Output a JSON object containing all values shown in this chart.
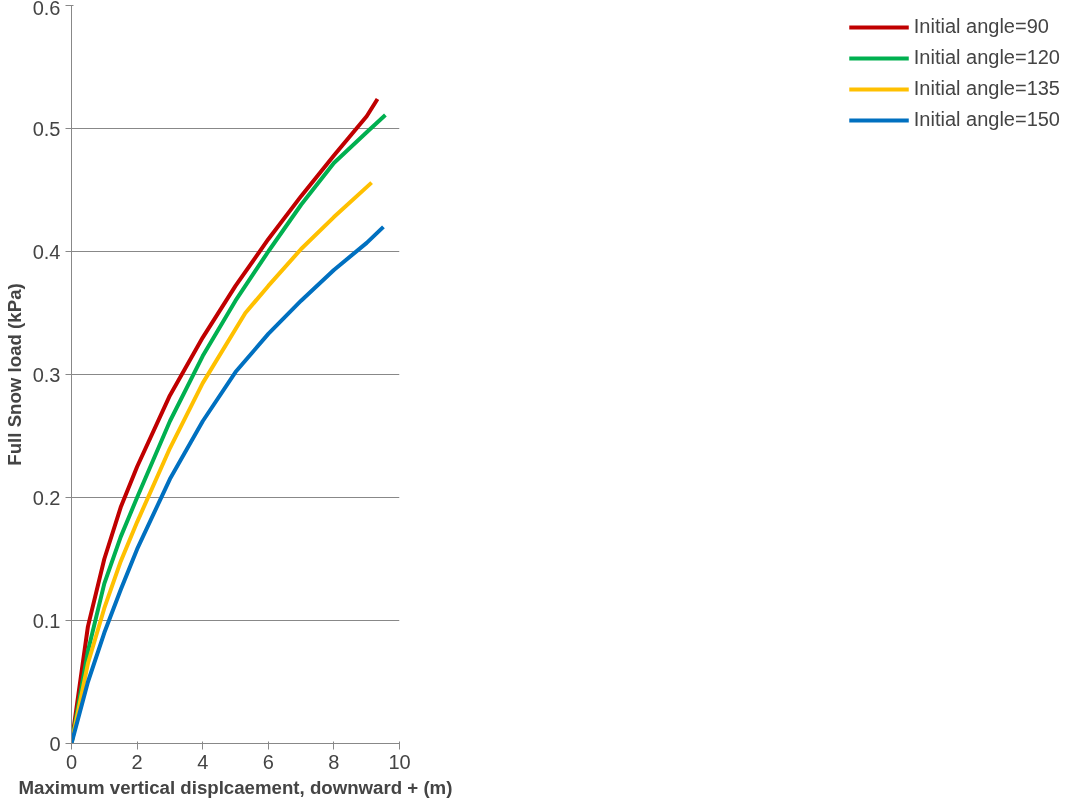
{
  "chart_data": {
    "type": "line",
    "xlabel": "Maximum vertical displcaement, downward + (m)",
    "ylabel": "Full Snow load (kPa)",
    "xlim": [
      0,
      10
    ],
    "ylim": [
      0,
      0.6
    ],
    "xticks": [
      0,
      2,
      4,
      6,
      8,
      10
    ],
    "yticks": [
      0,
      0.1,
      0.2,
      0.3,
      0.4,
      0.5,
      0.6
    ],
    "grid": "y",
    "legend": "right",
    "line_style": "solid",
    "series": [
      {
        "name": "Initial angle=90",
        "color": "#c00000",
        "x": [
          0,
          0.5,
          1,
          1.5,
          2,
          3,
          4,
          5,
          6,
          7,
          8,
          9,
          9.33
        ],
        "values": [
          0,
          0.095,
          0.15,
          0.192,
          0.225,
          0.283,
          0.33,
          0.372,
          0.41,
          0.445,
          0.478,
          0.51,
          0.524
        ]
      },
      {
        "name": "Initial angle=120",
        "color": "#00b050",
        "x": [
          0,
          0.5,
          1,
          1.5,
          2,
          3,
          4,
          5,
          6,
          7,
          8,
          9,
          9.57
        ],
        "values": [
          0,
          0.075,
          0.13,
          0.168,
          0.2,
          0.262,
          0.315,
          0.36,
          0.4,
          0.438,
          0.472,
          0.497,
          0.511
        ]
      },
      {
        "name": "Initial angle=135",
        "color": "#ffc000",
        "x": [
          0,
          0.5,
          1,
          1.5,
          2,
          3,
          4,
          5.3,
          6,
          7,
          8,
          9.15
        ],
        "values": [
          0,
          0.065,
          0.11,
          0.148,
          0.18,
          0.24,
          0.293,
          0.35,
          0.372,
          0.402,
          0.428,
          0.456
        ]
      },
      {
        "name": "Initial angle=150",
        "color": "#0070c0",
        "x": [
          0,
          0.5,
          1,
          1.5,
          2,
          3,
          4,
          5,
          6,
          7,
          8,
          9,
          9.51
        ],
        "values": [
          0,
          0.05,
          0.09,
          0.125,
          0.158,
          0.215,
          0.262,
          0.302,
          0.333,
          0.36,
          0.385,
          0.407,
          0.42
        ]
      }
    ]
  }
}
